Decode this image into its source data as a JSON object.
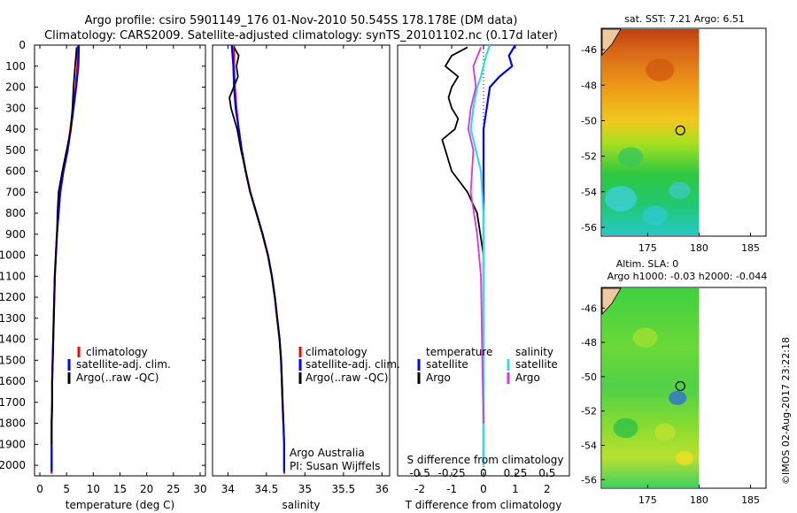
{
  "header": {
    "line1": "Argo profile: csiro 5901149_176 01-Nov-2010 50.545S 178.178E (DM data)",
    "line2": "Climatology: CARS2009. Satellite-adjusted climatology: synTS_20101102.nc (0.17d later)"
  },
  "colors": {
    "climatology": "#ff0000",
    "satellite": "#0000ff",
    "argo": "#000000",
    "sal_satellite": "#33dddd",
    "sal_argo": "#dd33dd"
  },
  "chart_data": [
    {
      "type": "line",
      "id": "temperature",
      "xlabel": "temperature (deg C)",
      "ylabel": "",
      "xlim": [
        -1,
        31
      ],
      "ylim": [
        0,
        2050
      ],
      "xticks": [
        0,
        5,
        10,
        15,
        20,
        25,
        30
      ],
      "yticks": [
        0,
        100,
        200,
        300,
        400,
        500,
        600,
        700,
        800,
        900,
        1000,
        1100,
        1200,
        1300,
        1400,
        1500,
        1600,
        1700,
        1800,
        1900,
        2000
      ],
      "legend": [
        "climatology",
        "satellite-adj. clim.",
        "Argo(..raw -QC)"
      ],
      "series": [
        {
          "name": "climatology",
          "x": [
            7.1,
            7.0,
            6.7,
            6.2,
            5.7,
            5.2,
            4.4,
            3.8,
            3.5,
            3.2,
            3.0,
            2.8,
            2.7,
            2.6,
            2.5,
            2.4,
            2.3,
            2.3,
            2.2,
            2.2,
            2.2
          ],
          "y": [
            0,
            100,
            200,
            300,
            400,
            500,
            600,
            700,
            800,
            900,
            1000,
            1100,
            1200,
            1300,
            1400,
            1500,
            1600,
            1700,
            1800,
            1900,
            2040
          ]
        },
        {
          "name": "satellite-adj. clim.",
          "x": [
            7.3,
            7.2,
            6.8,
            6.3,
            5.8,
            5.2,
            4.4,
            3.8,
            3.5,
            3.2,
            3.0,
            2.8,
            2.7,
            2.6,
            2.5,
            2.4,
            2.3,
            2.3,
            2.2,
            2.2,
            2.2
          ],
          "y": [
            0,
            100,
            200,
            300,
            400,
            500,
            600,
            700,
            800,
            900,
            1000,
            1100,
            1200,
            1300,
            1400,
            1500,
            1600,
            1700,
            1800,
            1900,
            2030
          ]
        },
        {
          "name": "Argo(..raw -QC)",
          "x": [
            6.9,
            6.6,
            6.3,
            6.1,
            5.8,
            5.0,
            4.2,
            3.5,
            3.3,
            3.2,
            3.0,
            2.8,
            2.7,
            2.6,
            2.5,
            2.4,
            2.3,
            2.3,
            2.2,
            2.2
          ],
          "y": [
            10,
            100,
            200,
            300,
            400,
            500,
            600,
            700,
            800,
            900,
            1000,
            1100,
            1200,
            1300,
            1400,
            1500,
            1600,
            1700,
            1800,
            1900
          ]
        }
      ]
    },
    {
      "type": "line",
      "id": "salinity",
      "xlabel": "salinity",
      "xlim": [
        33.8,
        36.1
      ],
      "ylim": [
        0,
        2050
      ],
      "xticks": [
        34,
        34.5,
        35,
        35.5,
        36
      ],
      "xticklabels": [
        "34",
        "34.5",
        "35",
        "35.5",
        "36"
      ],
      "legend": [
        "climatology",
        "satellite-adj. clim.",
        "Argo(..raw -QC)"
      ],
      "annotation": [
        "Argo Australia",
        "PI: Susan Wijffels"
      ],
      "series": [
        {
          "name": "climatology",
          "x": [
            34.08,
            34.08,
            34.09,
            34.11,
            34.14,
            34.18,
            34.23,
            34.29,
            34.37,
            34.45,
            34.52,
            34.57,
            34.61,
            34.64,
            34.67,
            34.69,
            34.7,
            34.71,
            34.72,
            34.73,
            34.73
          ],
          "y": [
            0,
            100,
            200,
            300,
            400,
            500,
            600,
            700,
            800,
            900,
            1000,
            1100,
            1200,
            1300,
            1400,
            1500,
            1600,
            1700,
            1800,
            1900,
            2040
          ]
        },
        {
          "name": "satellite-adj. clim.",
          "x": [
            34.05,
            34.07,
            34.08,
            34.1,
            34.14,
            34.18,
            34.23,
            34.29,
            34.37,
            34.45,
            34.52,
            34.57,
            34.61,
            34.64,
            34.67,
            34.69,
            34.7,
            34.71,
            34.72,
            34.73,
            34.73
          ],
          "y": [
            0,
            100,
            200,
            300,
            400,
            500,
            600,
            700,
            800,
            900,
            1000,
            1100,
            1200,
            1300,
            1400,
            1500,
            1600,
            1700,
            1800,
            1900,
            2030
          ]
        },
        {
          "name": "Argo(..raw -QC)",
          "x": [
            34.08,
            34.14,
            34.11,
            34.13,
            34.02,
            34.04,
            34.12,
            34.17,
            34.23,
            34.29,
            34.37,
            34.45,
            34.52,
            34.57,
            34.61,
            34.64,
            34.67,
            34.69,
            34.7,
            34.71,
            34.72
          ],
          "y": [
            10,
            50,
            100,
            150,
            250,
            300,
            400,
            500,
            600,
            700,
            800,
            900,
            1000,
            1100,
            1200,
            1300,
            1400,
            1500,
            1600,
            1700,
            1800
          ]
        }
      ]
    },
    {
      "type": "line",
      "id": "differences",
      "xlabel": "T difference from climatology",
      "xlabel_top": "S difference from climatology",
      "xlim": [
        -2.7,
        2.7
      ],
      "ylim": [
        0,
        2050
      ],
      "xticks": [
        -2,
        -1,
        0,
        1,
        2
      ],
      "xticks_top": [
        -0.5,
        -0.25,
        0,
        0.25,
        0.5
      ],
      "xticklabels_top": [
        "-0.5",
        "-0.25",
        "0",
        "0.25",
        "0.5"
      ],
      "legend": {
        "temperature": "temperature",
        "salinity": "salinity",
        "t_sat": "satellite",
        "t_argo": "Argo",
        "s_sat": "satellite",
        "s_argo": "Argo"
      },
      "series": [
        {
          "name": "temperature satellite",
          "x": [
            1.0,
            0.8,
            0.9,
            0.5,
            0.2,
            0.1,
            0.0,
            0.0,
            0.0,
            0.0,
            0.0
          ],
          "y": [
            0,
            50,
            100,
            150,
            200,
            300,
            400,
            600,
            800,
            1000,
            2000
          ]
        },
        {
          "name": "temperature Argo",
          "x": [
            -0.5,
            -1.0,
            -1.2,
            -0.8,
            -1.0,
            -1.1,
            -1.0,
            -0.8,
            -0.9,
            -1.3,
            -1.2,
            -1.0,
            -0.5,
            -0.2,
            -0.1,
            0.0,
            0.0,
            0.0
          ],
          "y": [
            10,
            50,
            100,
            150,
            200,
            250,
            300,
            350,
            400,
            450,
            500,
            600,
            700,
            800,
            900,
            1000,
            1500,
            2000
          ]
        },
        {
          "name": "salinity satellite",
          "x": [
            0.05,
            0.02,
            0.0,
            -0.02,
            -0.05,
            -0.08,
            -0.1,
            -0.02,
            0.0,
            0.0,
            0.0
          ],
          "y": [
            0,
            50,
            100,
            150,
            200,
            300,
            400,
            600,
            800,
            1000,
            2000
          ]
        },
        {
          "name": "salinity Argo",
          "x": [
            -0.02,
            -0.08,
            -0.06,
            -0.1,
            -0.12,
            -0.08,
            -0.1,
            -0.05,
            -0.02,
            -0.01,
            0.0
          ],
          "y": [
            10,
            100,
            200,
            300,
            400,
            500,
            700,
            900,
            1100,
            1500,
            1800
          ]
        }
      ]
    },
    {
      "type": "heatmap",
      "id": "sst_map",
      "title": "sat. SST: 7.21  Argo: 6.51",
      "xlim": [
        170.5,
        186.5
      ],
      "ylim": [
        -56.5,
        -44.8
      ],
      "xticks": [
        175,
        180,
        185
      ],
      "yticks": [
        -46,
        -48,
        -50,
        -52,
        -54,
        -56
      ],
      "marker": {
        "lon": 178.178,
        "lat": -50.545
      }
    },
    {
      "type": "heatmap",
      "id": "sla_map",
      "title": [
        "Altim. SLA: 0",
        "Argo h1000: -0.03 h2000: -0.044"
      ],
      "xlim": [
        170.5,
        186.5
      ],
      "ylim": [
        -56.5,
        -44.8
      ],
      "xticks": [
        175,
        180,
        185
      ],
      "yticks": [
        -46,
        -48,
        -50,
        -52,
        -54,
        -56
      ],
      "marker": {
        "lon": 178.178,
        "lat": -50.545
      }
    }
  ],
  "footer": {
    "credit": "©IMOS 02-Aug-2017 23:22:18"
  }
}
